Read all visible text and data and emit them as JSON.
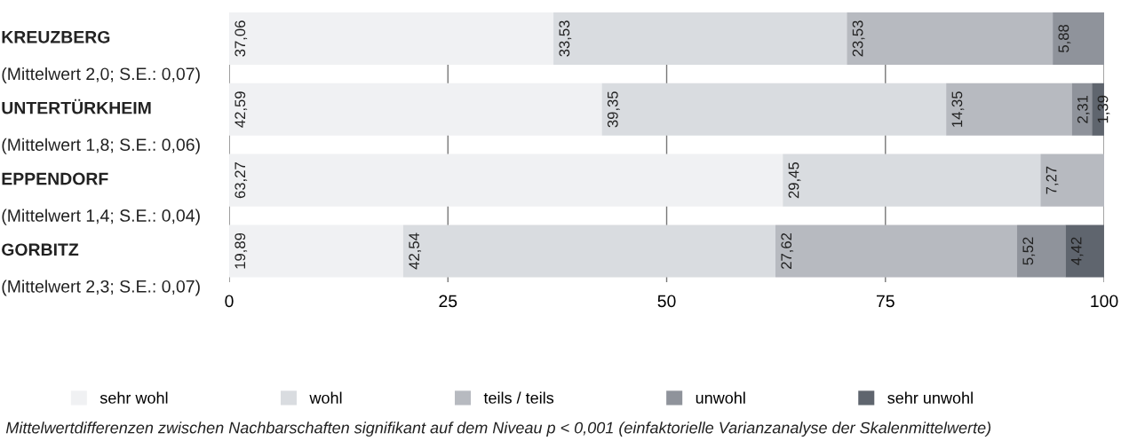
{
  "chart_data": {
    "type": "bar",
    "orientation": "horizontal",
    "stacked": true,
    "categories": [
      "KREUZBERG\n(Mittelwert 2,0; S.E.: 0,07)",
      "UNTERTÜRKHEIM\n(Mittelwert 1,8; S.E.: 0,06)",
      "EPPENDORF\n(Mittelwert 1,4; S.E.: 0,04)",
      "GORBITZ\n(Mittelwert 2,3; S.E.: 0,07)"
    ],
    "series": [
      {
        "name": "sehr wohl",
        "color": "#f0f1f3",
        "values": [
          37.06,
          42.59,
          63.27,
          19.89
        ],
        "value_labels": [
          "37,06",
          "42,59",
          "63,27",
          "19,89"
        ]
      },
      {
        "name": "wohl",
        "color": "#d9dce0",
        "values": [
          33.53,
          39.35,
          29.45,
          42.54
        ],
        "value_labels": [
          "33,53",
          "39,35",
          "29,45",
          "42,54"
        ]
      },
      {
        "name": "teils / teils",
        "color": "#b7bac0",
        "values": [
          23.53,
          14.35,
          7.27,
          27.62
        ],
        "value_labels": [
          "23,53",
          "14,35",
          "7,27",
          "27,62"
        ]
      },
      {
        "name": "unwohl",
        "color": "#8f939b",
        "values": [
          5.88,
          2.31,
          null,
          5.52
        ],
        "value_labels": [
          "5,88",
          "2,31",
          null,
          "5,52"
        ]
      },
      {
        "name": "sehr unwohl",
        "color": "#5f656e",
        "values": [
          null,
          1.39,
          null,
          4.42
        ],
        "value_labels": [
          null,
          "1,39",
          null,
          "4,42"
        ]
      }
    ],
    "xlim": [
      0,
      100
    ],
    "xticks": [
      0,
      25,
      50,
      75,
      100
    ],
    "grid": "x",
    "legend": "bottom",
    "annotations": [
      "Mittelwertdifferenzen zwischen Nachbarschaften signifikant auf dem Niveau p < 0,001 (einfaktorielle Varianzanalyse der Skalenmittelwerte)"
    ]
  }
}
